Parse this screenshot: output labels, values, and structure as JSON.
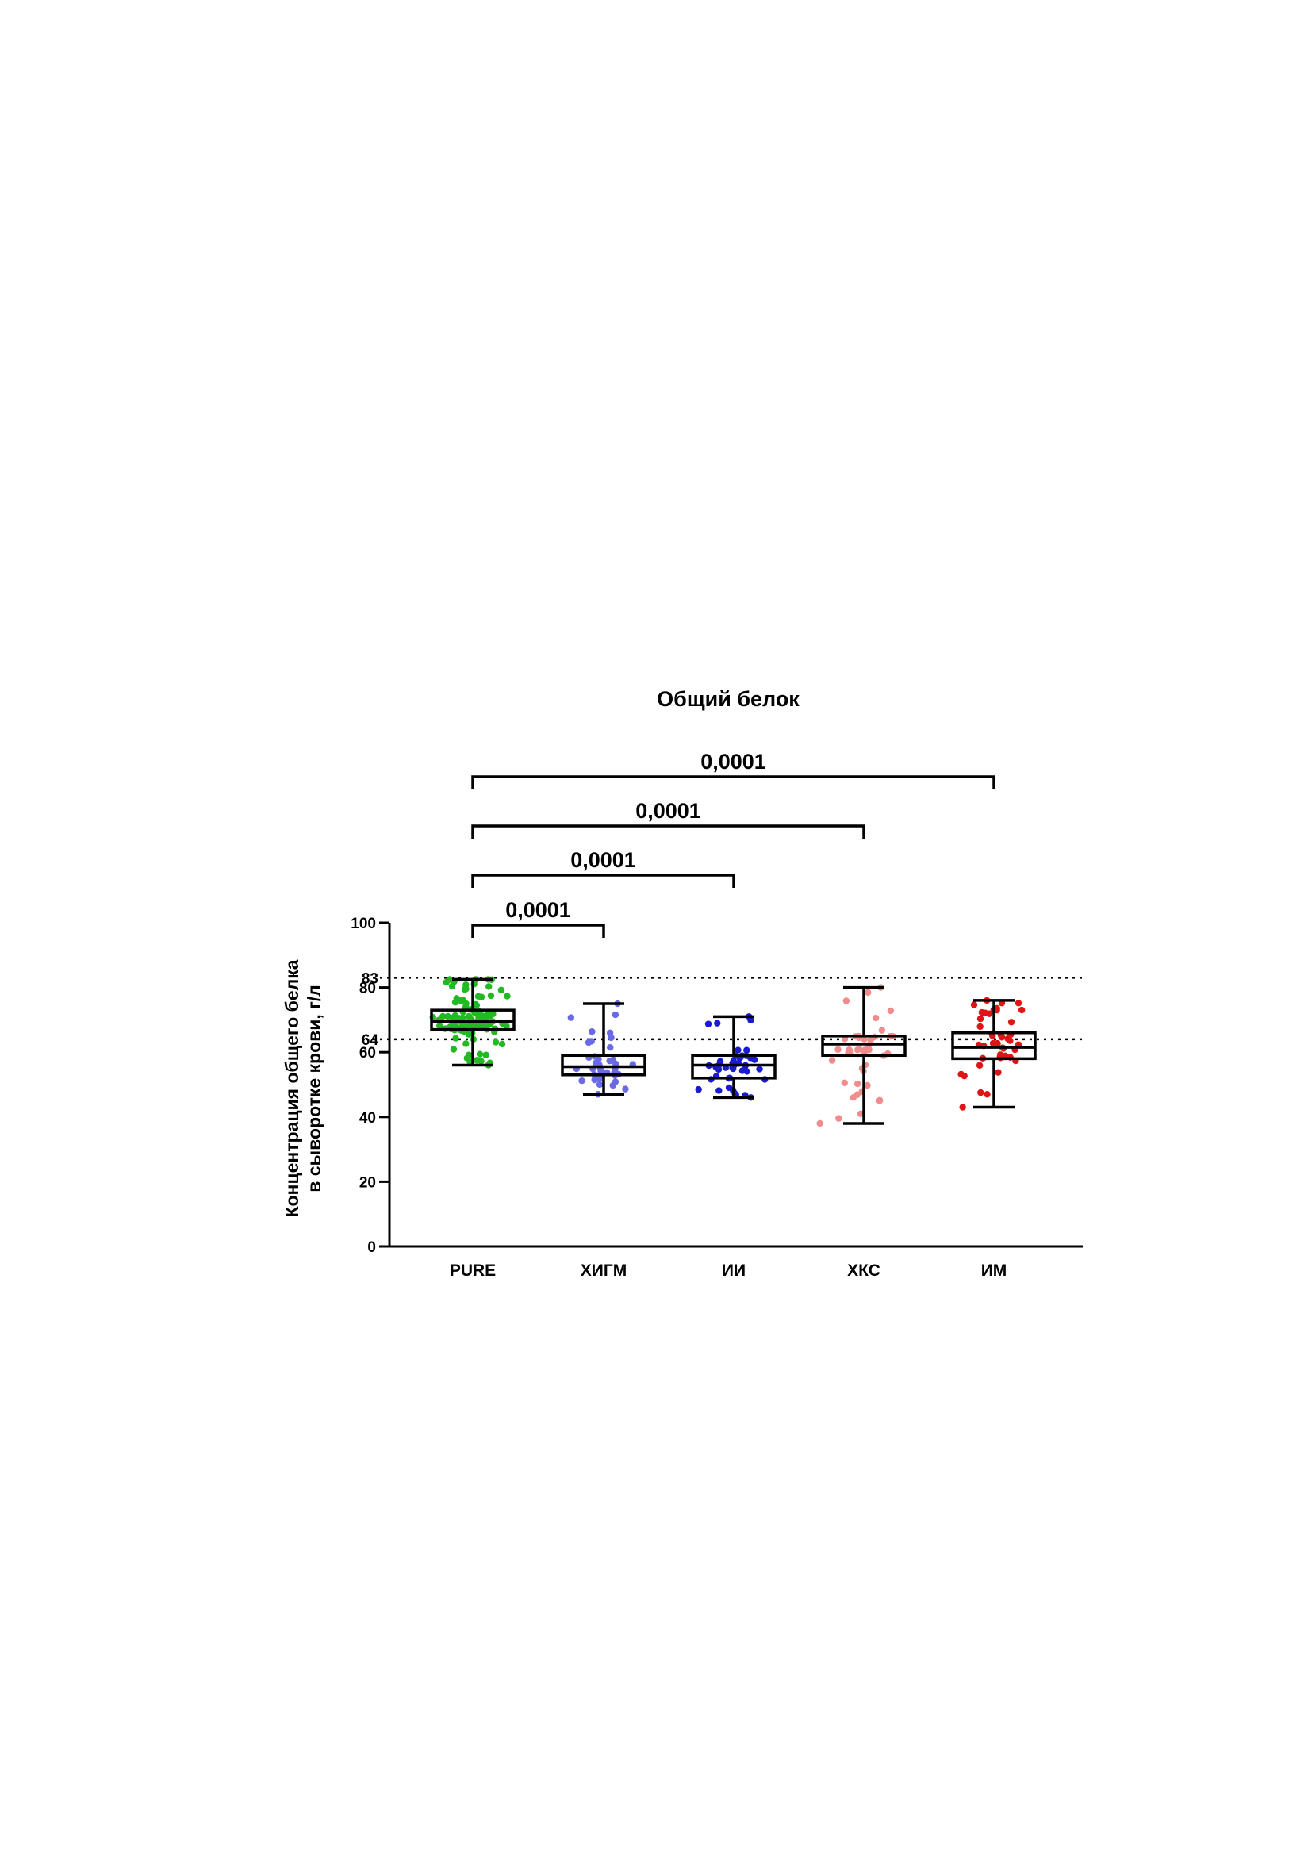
{
  "chart_data": {
    "type": "box",
    "title": "Общий белок",
    "ylabel_lines": [
      "Концентрация общего белка",
      "в сыворотке крови, г/л"
    ],
    "ylim": [
      0,
      100
    ],
    "yticks": [
      0,
      20,
      40,
      60,
      80,
      100
    ],
    "reference_lines": [
      {
        "label": "83",
        "value": 83
      },
      {
        "label": "64",
        "value": 64
      }
    ],
    "categories": [
      "PURE",
      "ХИГМ",
      "ИИ",
      "ХКС",
      "ИМ"
    ],
    "boxes": [
      {
        "name": "PURE",
        "color": "#22b922",
        "min": 56,
        "q1": 67,
        "median": 69.5,
        "q3": 73,
        "max": 82.5,
        "n": 110,
        "spread": 12
      },
      {
        "name": "ХИГМ",
        "color": "#6a6ae6",
        "min": 47,
        "q1": 53,
        "median": 55.5,
        "q3": 59,
        "max": 75,
        "n": 40,
        "spread": 6
      },
      {
        "name": "ИИ",
        "color": "#1a1ad2",
        "min": 46,
        "q1": 52,
        "median": 56,
        "q3": 59,
        "max": 71,
        "n": 42,
        "spread": 6
      },
      {
        "name": "ХКС",
        "color": "#f08c8c",
        "min": 38,
        "q1": 59,
        "median": 62.5,
        "q3": 65,
        "max": 80,
        "n": 44,
        "spread": 6
      },
      {
        "name": "ИМ",
        "color": "#e01414",
        "min": 43,
        "q1": 58,
        "median": 61.5,
        "q3": 66,
        "max": 76,
        "n": 44,
        "spread": 6
      }
    ],
    "comparisons": [
      {
        "from": "PURE",
        "to": "ХИГМ",
        "p": "0,0001"
      },
      {
        "from": "PURE",
        "to": "ИИ",
        "p": "0,0001"
      },
      {
        "from": "PURE",
        "to": "ХКС",
        "p": "0,0001"
      },
      {
        "from": "PURE",
        "to": "ИМ",
        "p": "0,0001"
      }
    ]
  }
}
